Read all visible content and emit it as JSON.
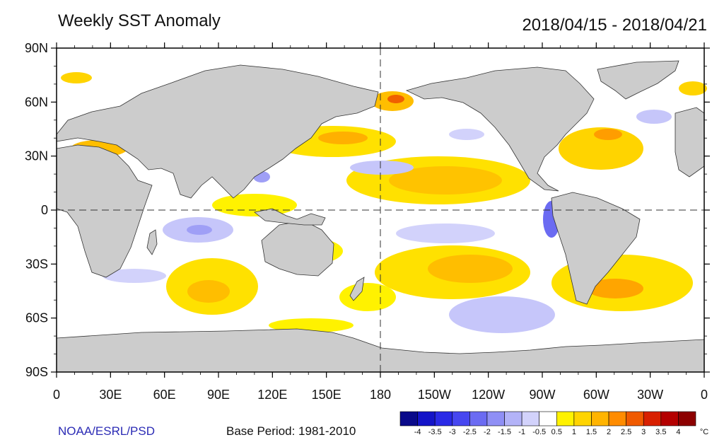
{
  "title": "Weekly SST Anomaly",
  "date_range": "2018/04/15 - 2018/04/21",
  "lat_labels": [
    "90N",
    "60N",
    "30N",
    "0",
    "30S",
    "60S",
    "90S"
  ],
  "lon_labels": [
    "0",
    "30E",
    "60E",
    "90E",
    "120E",
    "150E",
    "180",
    "150W",
    "120W",
    "90W",
    "60W",
    "30W",
    "0"
  ],
  "credit": "NOAA/ESRL/PSD",
  "base_period": "Base Period: 1981-2010",
  "colorbar": {
    "ticks": [
      "-4",
      "-3.5",
      "-3",
      "-2.5",
      "-2",
      "-1.5",
      "-1",
      "-0.5",
      "0.5",
      "1",
      "1.5",
      "2",
      "2.5",
      "3",
      "3.5",
      "4"
    ],
    "unit": "°C",
    "colors": [
      "#0a0a8a",
      "#1414c8",
      "#2a2ae6",
      "#4747f0",
      "#6b6bf2",
      "#8f8ff5",
      "#b3b3f8",
      "#d2d2fb",
      "#ffffff",
      "#fff200",
      "#ffd400",
      "#ffb400",
      "#ff8c00",
      "#f05a00",
      "#d82000",
      "#b40000",
      "#8c0000"
    ]
  },
  "colors": {
    "land": "#cccccc",
    "frame": "#000000",
    "warm": "#ffd400",
    "cool": "#b3b3f8"
  }
}
